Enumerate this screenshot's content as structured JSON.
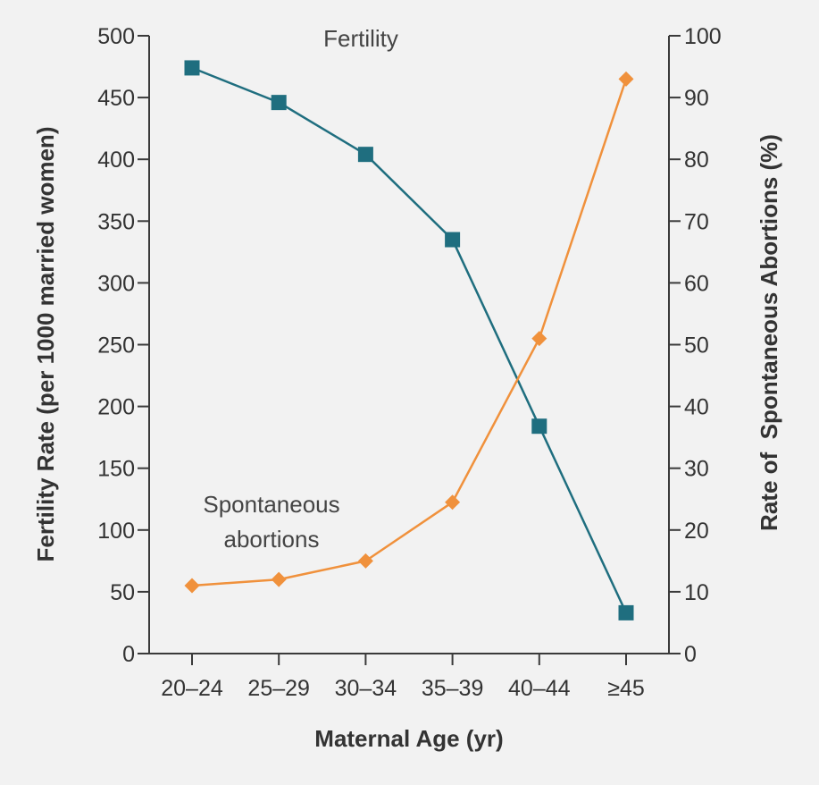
{
  "chart_data": {
    "type": "line",
    "xlabel": "Maternal Age (yr)",
    "ylabel_left": "Fertility Rate (per 1000 married women)",
    "ylabel_right": "Rate of  Spontaneous Abortions (%)",
    "categories": [
      "20–24",
      "25–29",
      "30–34",
      "35–39",
      "40–44",
      "≥45"
    ],
    "y_left": {
      "min": 0,
      "max": 500,
      "step": 50,
      "ticks": [
        "0",
        "50",
        "100",
        "150",
        "200",
        "250",
        "300",
        "350",
        "400",
        "450",
        "500"
      ]
    },
    "y_right": {
      "min": 0,
      "max": 100,
      "step": 10,
      "ticks": [
        "0",
        "10",
        "20",
        "30",
        "40",
        "50",
        "60",
        "70",
        "80",
        "90",
        "100"
      ]
    },
    "series": [
      {
        "name": "Fertility",
        "axis": "left",
        "marker": "square",
        "color": "#1f6e7f",
        "values": [
          474,
          446,
          404,
          335,
          184,
          33
        ]
      },
      {
        "name": "Spontaneous abortions",
        "axis": "right",
        "marker": "diamond",
        "color": "#f0913c",
        "values": [
          11,
          12,
          15,
          24.5,
          51,
          93
        ]
      }
    ],
    "annotations": [
      {
        "lines": [
          "Fertility"
        ],
        "series": 0
      },
      {
        "lines": [
          "Spontaneous",
          "abortions"
        ],
        "series": 1
      }
    ],
    "grid": false,
    "legend": "none"
  }
}
